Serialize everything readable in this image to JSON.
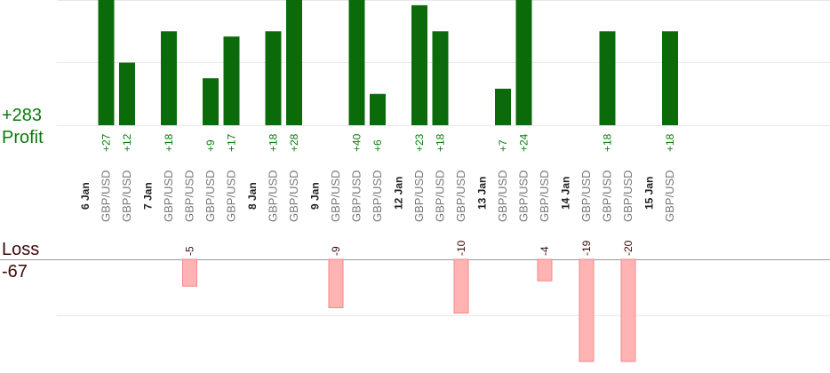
{
  "summary": {
    "profit_total": "+283",
    "profit_label": "Profit",
    "loss_label": "Loss",
    "loss_total": "-67"
  },
  "colors": {
    "profit_bar": "#0b6b0b",
    "profit_text": "#0a7a0a",
    "loss_bar": "#ffb3b3",
    "loss_bar_stroke": "#f08a8a",
    "loss_text": "#3b0b0b",
    "grid": "#e8e8e8",
    "baseline": "#9a9a9a",
    "date_text": "#222222",
    "pair_text": "#777777"
  },
  "chart_data": {
    "type": "bar",
    "categories": [
      {
        "kind": "date",
        "label": "6 Jan"
      },
      {
        "kind": "trade",
        "label": "GBP/USD",
        "value": 27
      },
      {
        "kind": "trade",
        "label": "GBP/USD",
        "value": 12
      },
      {
        "kind": "date",
        "label": "7 Jan"
      },
      {
        "kind": "trade",
        "label": "GBP/USD",
        "value": 18
      },
      {
        "kind": "trade",
        "label": "GBP/USD",
        "value": -5
      },
      {
        "kind": "trade",
        "label": "GBP/USD",
        "value": 9
      },
      {
        "kind": "trade",
        "label": "GBP/USD",
        "value": 17
      },
      {
        "kind": "date",
        "label": "8 Jan"
      },
      {
        "kind": "trade",
        "label": "GBP/USD",
        "value": 18
      },
      {
        "kind": "trade",
        "label": "GBP/USD",
        "value": 28
      },
      {
        "kind": "date",
        "label": "9 Jan"
      },
      {
        "kind": "trade",
        "label": "GBP/USD",
        "value": -9
      },
      {
        "kind": "trade",
        "label": "GBP/USD",
        "value": 40
      },
      {
        "kind": "trade",
        "label": "GBP/USD",
        "value": 6
      },
      {
        "kind": "date",
        "label": "12 Jan"
      },
      {
        "kind": "trade",
        "label": "GBP/USD",
        "value": 23
      },
      {
        "kind": "trade",
        "label": "GBP/USD",
        "value": 18
      },
      {
        "kind": "trade",
        "label": "GBP/USD",
        "value": -10
      },
      {
        "kind": "date",
        "label": "13 Jan"
      },
      {
        "kind": "trade",
        "label": "GBP/USD",
        "value": 7
      },
      {
        "kind": "trade",
        "label": "GBP/USD",
        "value": 24
      },
      {
        "kind": "trade",
        "label": "GBP/USD",
        "value": -4
      },
      {
        "kind": "date",
        "label": "14 Jan"
      },
      {
        "kind": "trade",
        "label": "GBP/USD",
        "value": -19
      },
      {
        "kind": "trade",
        "label": "GBP/USD",
        "value": 18
      },
      {
        "kind": "trade",
        "label": "GBP/USD",
        "value": -20
      },
      {
        "kind": "date",
        "label": "15 Jan"
      },
      {
        "kind": "trade",
        "label": "GBP/USD",
        "value": 18
      }
    ],
    "profit_ylim": [
      0,
      24
    ],
    "loss_ylim": [
      -19,
      0
    ],
    "grid": true,
    "legend": "none"
  }
}
